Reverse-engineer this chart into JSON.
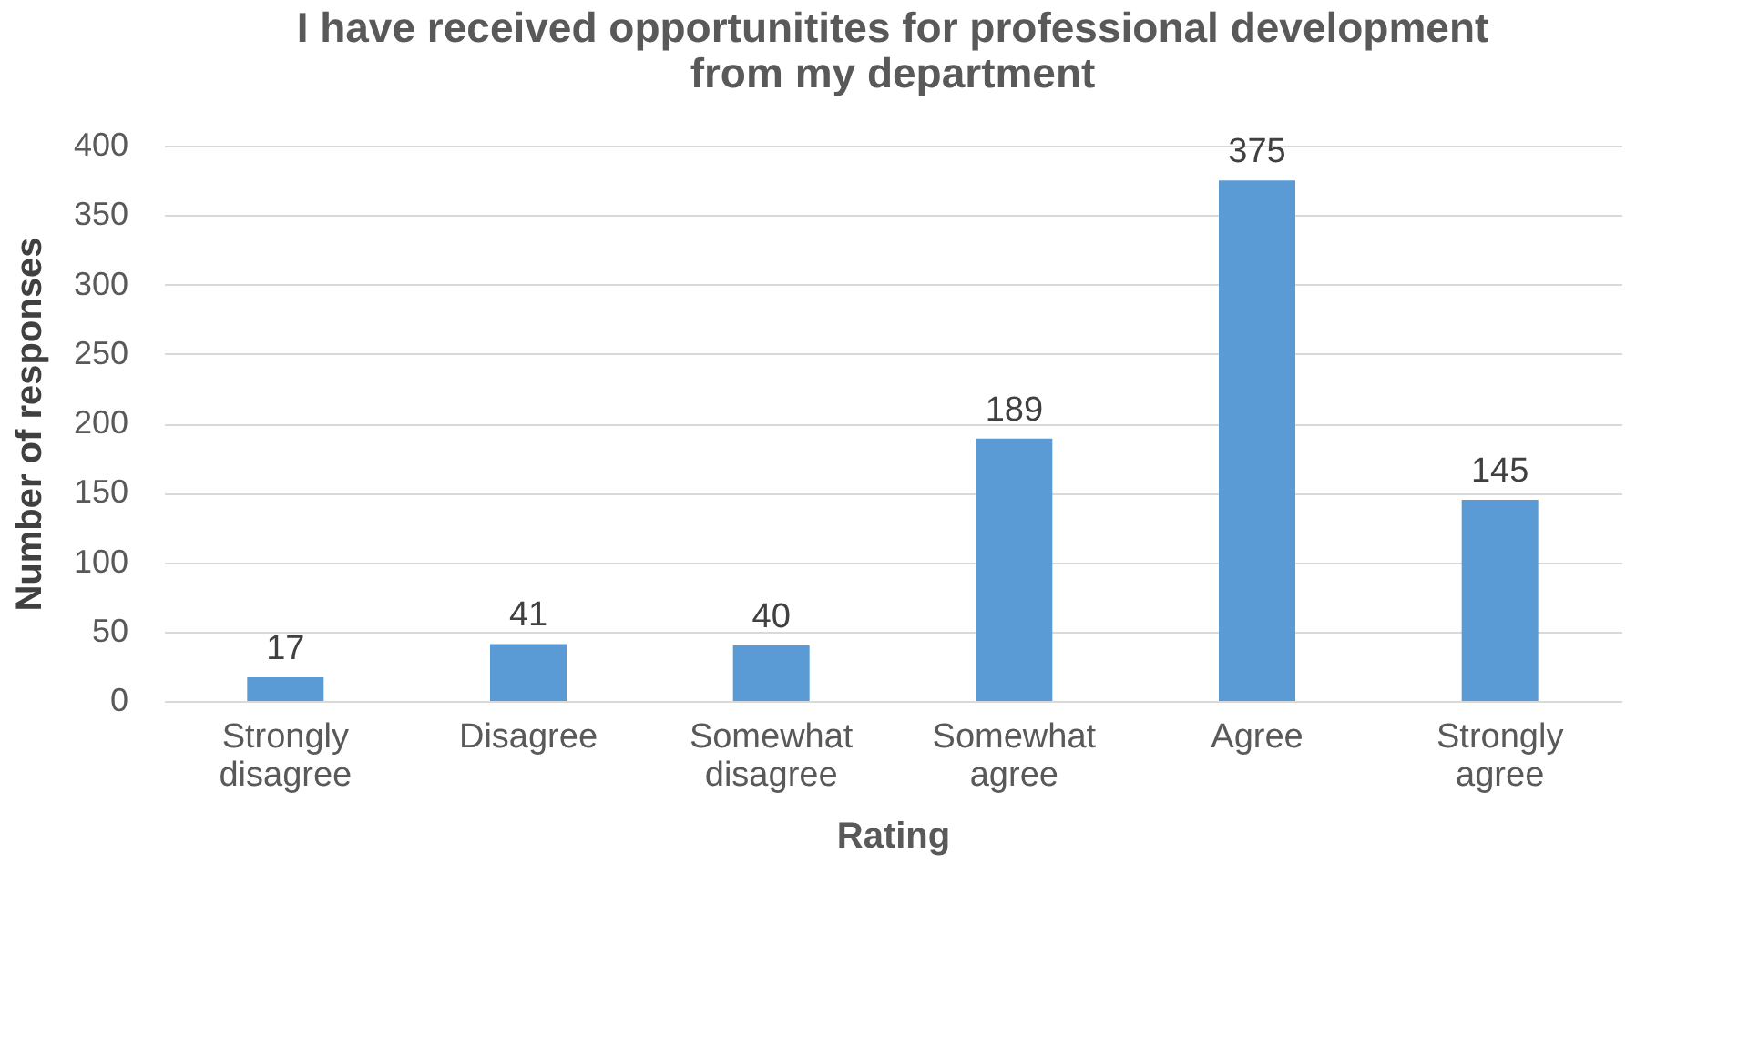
{
  "chart_data": {
    "type": "bar",
    "title": "I have received opportunitites for professional development from my department",
    "xlabel": "Rating",
    "ylabel": "Number of responses",
    "categories": [
      "Strongly disagree",
      "Disagree",
      "Somewhat disagree",
      "Somewhat agree",
      "Agree",
      "Strongly agree"
    ],
    "values": [
      17,
      41,
      40,
      189,
      375,
      145
    ],
    "color": "#5b9bd5",
    "ylim": [
      0,
      400
    ],
    "yticks": [
      0,
      50,
      100,
      150,
      200,
      250,
      300,
      350,
      400
    ],
    "grid": "y",
    "data_labels": true
  }
}
